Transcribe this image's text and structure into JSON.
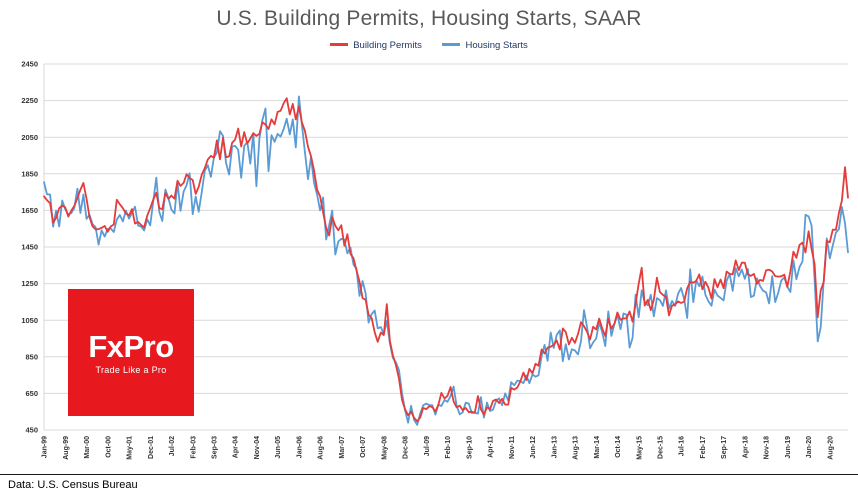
{
  "title": "U.S. Building Permits, Housing Starts, SAAR",
  "legend": {
    "items": [
      {
        "label": "Building Permits",
        "color": "#e43b3b"
      },
      {
        "label": "Housing Starts",
        "color": "#5b9bd5"
      }
    ]
  },
  "logo": {
    "name": "FxPro",
    "tagline": "Trade Like a Pro",
    "bg_color": "#e7191f"
  },
  "footer": {
    "source": "Data: U.S. Census Bureau"
  },
  "colors": {
    "grid": "#d9d9d9",
    "axis_text": "#333333",
    "title": "#595959"
  },
  "chart_data": {
    "type": "line",
    "title": "U.S. Building Permits, Housing Starts, SAAR",
    "xlabel": "",
    "ylabel": "",
    "ylim": [
      450,
      2450
    ],
    "y_ticks": [
      450,
      650,
      850,
      1050,
      1250,
      1450,
      1650,
      1850,
      2050,
      2250,
      2450
    ],
    "grid": "horizontal",
    "legend_position": "top-center",
    "x_unit": "month",
    "x_tick_interval": 7,
    "x_tick_labels": [
      "Jan-99",
      "Aug-99",
      "Mar-00",
      "Oct-00",
      "May-01",
      "Dec-01",
      "Jul-02",
      "Feb-03",
      "Sep-03",
      "Apr-04",
      "Nov-04",
      "Jun-05",
      "Jan-06",
      "Aug-06",
      "Mar-07",
      "Oct-07",
      "May-08",
      "Dec-08",
      "Jul-09",
      "Feb-10",
      "Sep-10",
      "Apr-11",
      "Nov-11",
      "Jun-12",
      "Jan-13",
      "Aug-13",
      "Mar-14",
      "Oct-14",
      "May-15",
      "Dec-15",
      "Jul-16",
      "Feb-17",
      "Sep-17",
      "Apr-18",
      "Nov-18",
      "Jun-19",
      "Jan-20",
      "Aug-20"
    ],
    "series": [
      {
        "name": "Building Permits",
        "color": "#e43b3b",
        "values": [
          1727,
          1706,
          1689,
          1583,
          1609,
          1662,
          1676,
          1667,
          1616,
          1649,
          1674,
          1717,
          1763,
          1800,
          1715,
          1615,
          1563,
          1546,
          1548,
          1555,
          1565,
          1533,
          1562,
          1573,
          1708,
          1684,
          1662,
          1633,
          1622,
          1657,
          1578,
          1587,
          1570,
          1557,
          1621,
          1662,
          1708,
          1746,
          1662,
          1657,
          1745,
          1713,
          1731,
          1714,
          1812,
          1784,
          1800,
          1848,
          1827,
          1816,
          1740,
          1779,
          1846,
          1881,
          1928,
          1948,
          1938,
          2033,
          1929,
          2047,
          1940,
          1945,
          2019,
          2037,
          2097,
          1999,
          2078,
          2015,
          2043,
          2072,
          2057,
          2068,
          2132,
          2119,
          2095,
          2148,
          2120,
          2188,
          2194,
          2236,
          2263,
          2174,
          2232,
          2147,
          2217,
          2131,
          2085,
          1998,
          1946,
          1869,
          1763,
          1727,
          1639,
          1553,
          1513,
          1613,
          1566,
          1541,
          1569,
          1457,
          1520,
          1413,
          1389,
          1322,
          1261,
          1170,
          1162,
          1080,
          1061,
          984,
          932,
          982,
          969,
          1138,
          937,
          857,
          805,
          730,
          615,
          564,
          531,
          550,
          516,
          498,
          518,
          570,
          564,
          580,
          575,
          551,
          589,
          653,
          622,
          637,
          685,
          606,
          574,
          583,
          559,
          571,
          547,
          550,
          544,
          635,
          563,
          534,
          574,
          563,
          609,
          617,
          597,
          620,
          589,
          589,
          680,
          671,
          682,
          715,
          764,
          723,
          784,
          760,
          812,
          801,
          890,
          868,
          900,
          905,
          915,
          939,
          890,
          1005,
          985,
          918,
          954,
          926,
          974,
          1039,
          1017,
          986,
          945,
          1014,
          1000,
          1059,
          1005,
          963,
          1057,
          1003,
          1031,
          1092,
          1052,
          1060,
          1060,
          1098,
          1042,
          1140,
          1250,
          1337,
          1130,
          1161,
          1105,
          1161,
          1282,
          1204,
          1188,
          1177,
          1077,
          1130,
          1136,
          1153,
          1144,
          1152,
          1225,
          1260,
          1255,
          1266,
          1300,
          1219,
          1260,
          1228,
          1168,
          1275,
          1230,
          1272,
          1225,
          1316,
          1303,
          1300,
          1377,
          1324,
          1364,
          1364,
          1301,
          1292,
          1303,
          1249,
          1270,
          1265,
          1322,
          1326,
          1316,
          1291,
          1288,
          1290,
          1299,
          1232,
          1317,
          1425,
          1391,
          1461,
          1474,
          1420,
          1536,
          1438,
          1356,
          1066,
          1212,
          1258,
          1483,
          1476,
          1545,
          1544,
          1635,
          1704,
          1886,
          1720
        ]
      },
      {
        "name": "Housing Starts",
        "color": "#5b9bd5",
        "values": [
          1804,
          1738,
          1737,
          1561,
          1649,
          1562,
          1704,
          1657,
          1628,
          1636,
          1663,
          1769,
          1636,
          1737,
          1604,
          1626,
          1575,
          1559,
          1463,
          1541,
          1507,
          1549,
          1551,
          1532,
          1600,
          1625,
          1590,
          1649,
          1605,
          1636,
          1670,
          1567,
          1562,
          1540,
          1602,
          1568,
          1698,
          1829,
          1642,
          1592,
          1764,
          1717,
          1655,
          1633,
          1804,
          1648,
          1753,
          1788,
          1853,
          1629,
          1726,
          1643,
          1751,
          1867,
          1897,
          1833,
          1939,
          1967,
          2083,
          2057,
          1911,
          1846,
          1998,
          2003,
          1981,
          1828,
          2002,
          2024,
          1905,
          2072,
          1782,
          2042,
          2144,
          2207,
          1864,
          2061,
          2025,
          2068,
          2054,
          2095,
          2151,
          2065,
          2147,
          1994,
          2273,
          2119,
          1969,
          1821,
          1942,
          1802,
          1737,
          1650,
          1720,
          1491,
          1570,
          1649,
          1409,
          1480,
          1495,
          1490,
          1415,
          1448,
          1354,
          1330,
          1183,
          1264,
          1197,
          1037,
          1084,
          1103,
          1005,
          1013,
          973,
          1046,
          923,
          844,
          820,
          777,
          652,
          560,
          490,
          582,
          505,
          478,
          540,
          585,
          594,
          586,
          585,
          534,
          588,
          581,
          614,
          604,
          636,
          687,
          583,
          536,
          546,
          599,
          594,
          543,
          545,
          539,
          630,
          518,
          600,
          554,
          561,
          608,
          623,
          585,
          650,
          610,
          711,
          694,
          720,
          718,
          706,
          747,
          706,
          754,
          741,
          749,
          854,
          915,
          828,
          983,
          898,
          969,
          994,
          826,
          919,
          835,
          891,
          885,
          863,
          936,
          1105,
          1010,
          897,
          928,
          950,
          1039,
          984,
          909,
          1098,
          964,
          1028,
          1080,
          1001,
          1087,
          1080,
          900,
          954,
          1190,
          1067,
          1213,
          1147,
          1132,
          1189,
          1071,
          1171,
          1160,
          1128,
          1213,
          1113,
          1155,
          1128,
          1195,
          1226,
          1164,
          1062,
          1328,
          1149,
          1268,
          1236,
          1288,
          1189,
          1154,
          1129,
          1217,
          1185,
          1172,
          1158,
          1265,
          1303,
          1210,
          1334,
          1290,
          1327,
          1276,
          1329,
          1177,
          1184,
          1279,
          1237,
          1211,
          1202,
          1142,
          1291,
          1149,
          1199,
          1267,
          1284,
          1233,
          1204,
          1377,
          1274,
          1340,
          1371,
          1626,
          1617,
          1567,
          1269,
          934,
          1011,
          1265,
          1497,
          1388,
          1459,
          1528,
          1547,
          1669,
          1580,
          1421
        ]
      }
    ]
  }
}
